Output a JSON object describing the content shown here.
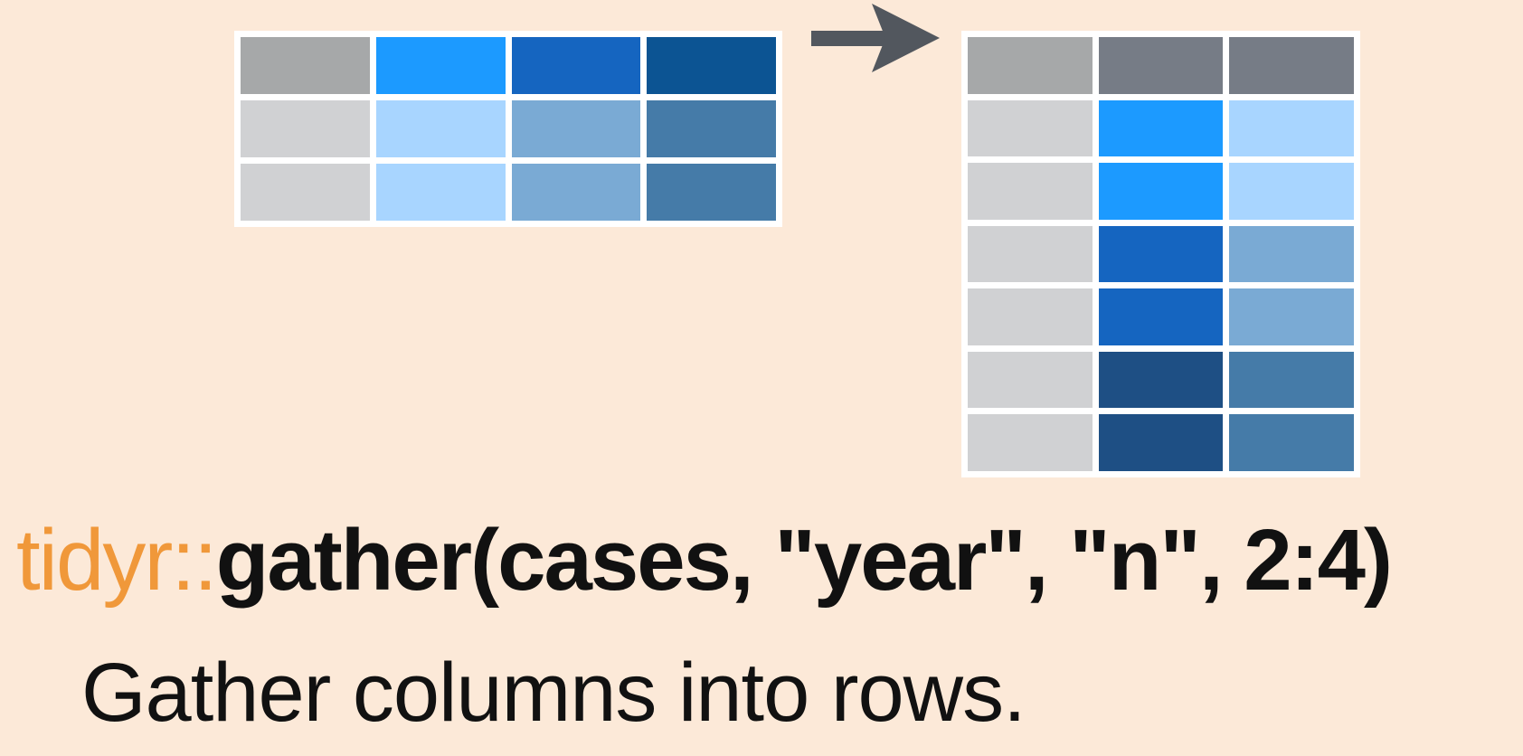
{
  "colors": {
    "background": "#fce9d8",
    "border": "#ffffff",
    "arrow": "#52575e",
    "package_text": "#f0983a",
    "code_text": "#111111"
  },
  "wide_table": {
    "rows": [
      [
        "#a6a8a9",
        "#1c9aff",
        "#1565c0",
        "#0c5493"
      ],
      [
        "#d0d1d3",
        "#a8d5ff",
        "#7aaad4",
        "#457ba8"
      ],
      [
        "#d0d1d3",
        "#a8d5ff",
        "#7aaad4",
        "#457ba8"
      ]
    ]
  },
  "long_table": {
    "rows": [
      [
        "#a6a8a9",
        "#767c86",
        "#767c86"
      ],
      [
        "#d0d1d3",
        "#1c9aff",
        "#a8d5ff"
      ],
      [
        "#d0d1d3",
        "#1c9aff",
        "#a8d5ff"
      ],
      [
        "#d0d1d3",
        "#1565c0",
        "#7aaad4"
      ],
      [
        "#d0d1d3",
        "#1565c0",
        "#7aaad4"
      ],
      [
        "#d0d1d3",
        "#1e4f84",
        "#457ba8"
      ],
      [
        "#d0d1d3",
        "#1e4f84",
        "#457ba8"
      ]
    ]
  },
  "arrow": {
    "icon": "right-arrow-icon"
  },
  "code": {
    "package": "tidyr::",
    "call": "gather(cases, \"year\", \"n\", 2:4)"
  },
  "description": "Gather columns into rows."
}
